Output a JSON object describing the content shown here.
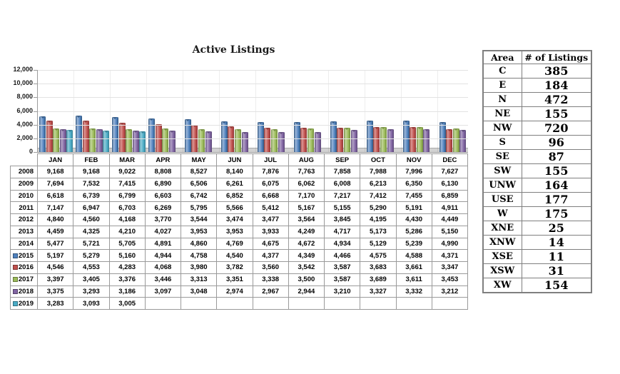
{
  "chart": {
    "title": "Active Listings",
    "y_axis": {
      "ticks": [
        "12,000",
        "10,000",
        "8,000",
        "6,000",
        "4,000",
        "2,000",
        "0"
      ],
      "max": 12000
    }
  },
  "chart_data": {
    "type": "bar",
    "title": "Active Listings",
    "categories": [
      "JAN",
      "FEB",
      "MAR",
      "APR",
      "MAY",
      "JUN",
      "JUL",
      "AUG",
      "SEP",
      "OCT",
      "NOV",
      "DEC"
    ],
    "ylim": [
      0,
      12000
    ],
    "y_tick_step": 2000,
    "grid": true,
    "legend_position": "table-row-labels",
    "series": [
      {
        "name": "2008",
        "plotted": false,
        "values": [
          9168,
          9168,
          9022,
          8808,
          8527,
          8140,
          7876,
          7763,
          7858,
          7988,
          7996,
          7627
        ]
      },
      {
        "name": "2009",
        "plotted": false,
        "values": [
          7694,
          7532,
          7415,
          6890,
          6506,
          6261,
          6075,
          6062,
          6008,
          6213,
          6350,
          6130
        ]
      },
      {
        "name": "2010",
        "plotted": false,
        "values": [
          6618,
          6739,
          6799,
          6603,
          6742,
          6852,
          6668,
          7170,
          7217,
          7412,
          7455,
          6859
        ]
      },
      {
        "name": "2011",
        "plotted": false,
        "values": [
          7147,
          6947,
          6703,
          6269,
          5795,
          5566,
          5412,
          5167,
          5155,
          5290,
          5191,
          4911
        ]
      },
      {
        "name": "2012",
        "plotted": false,
        "values": [
          4840,
          4560,
          4168,
          3770,
          3544,
          3474,
          3477,
          3564,
          3845,
          4195,
          4430,
          4449
        ]
      },
      {
        "name": "2013",
        "plotted": false,
        "values": [
          4459,
          4325,
          4210,
          4027,
          3953,
          3953,
          3933,
          4249,
          4717,
          5173,
          5286,
          5150
        ]
      },
      {
        "name": "2014",
        "plotted": false,
        "values": [
          5477,
          5721,
          5705,
          4891,
          4860,
          4769,
          4675,
          4672,
          4934,
          5129,
          5239,
          4990
        ]
      },
      {
        "name": "2015",
        "plotted": true,
        "color": "#4F81BD",
        "color_dark": "#30557E",
        "color_light": "#9AB6DA",
        "values": [
          5197,
          5279,
          5160,
          4944,
          4758,
          4540,
          4377,
          4349,
          4466,
          4575,
          4588,
          4371
        ]
      },
      {
        "name": "2016",
        "plotted": true,
        "color": "#C0504D",
        "color_dark": "#8C3836",
        "color_light": "#DC9694",
        "values": [
          4546,
          4553,
          4283,
          4068,
          3980,
          3782,
          3560,
          3542,
          3587,
          3683,
          3661,
          3347
        ]
      },
      {
        "name": "2017",
        "plotted": true,
        "color": "#9BBB59",
        "color_dark": "#71893F",
        "color_light": "#C4D79B",
        "values": [
          3397,
          3405,
          3376,
          3446,
          3313,
          3351,
          3338,
          3500,
          3587,
          3689,
          3611,
          3453
        ]
      },
      {
        "name": "2018",
        "plotted": true,
        "color": "#8064A2",
        "color_dark": "#5D4A77",
        "color_light": "#B3A2C7",
        "values": [
          3375,
          3293,
          3186,
          3097,
          3048,
          2974,
          2967,
          2944,
          3210,
          3327,
          3332,
          3212
        ]
      },
      {
        "name": "2019",
        "plotted": true,
        "color": "#4BACC6",
        "color_dark": "#357D92",
        "color_light": "#93CDDC",
        "values": [
          3283,
          3093,
          3005,
          null,
          null,
          null,
          null,
          null,
          null,
          null,
          null,
          null
        ]
      }
    ]
  },
  "area_table": {
    "headers": [
      "Area",
      "# of Listings"
    ],
    "rows": [
      {
        "area": "C",
        "listings": "385"
      },
      {
        "area": "E",
        "listings": "184"
      },
      {
        "area": "N",
        "listings": "472"
      },
      {
        "area": "NE",
        "listings": "155"
      },
      {
        "area": "NW",
        "listings": "720"
      },
      {
        "area": "S",
        "listings": "96"
      },
      {
        "area": "SE",
        "listings": "87"
      },
      {
        "area": "SW",
        "listings": "155"
      },
      {
        "area": "UNW",
        "listings": "164"
      },
      {
        "area": "USE",
        "listings": "177"
      },
      {
        "area": "W",
        "listings": "175"
      },
      {
        "area": "XNE",
        "listings": "25"
      },
      {
        "area": "XNW",
        "listings": "14"
      },
      {
        "area": "XSE",
        "listings": "11"
      },
      {
        "area": "XSW",
        "listings": "31"
      },
      {
        "area": "XW",
        "listings": "154"
      }
    ]
  },
  "colors": {
    "gridline": "#E2E2E2",
    "axis": "#9C9C9C",
    "table_border": "#9A9A9A",
    "area_table_border": "#7F7F7F",
    "floor": "#D2D2D2"
  }
}
